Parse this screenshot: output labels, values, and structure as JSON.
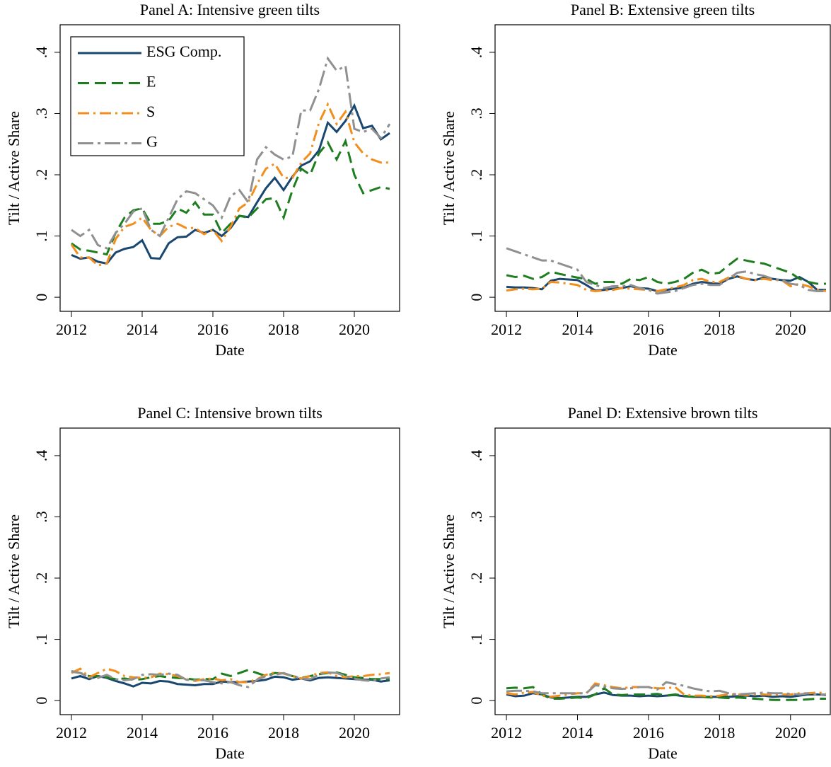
{
  "chart_data": [
    {
      "type": "line",
      "title": "Panel A: Intensive green tilts",
      "xlabel": "Date",
      "ylabel": "Tilt / Active Share",
      "legend": "upper left",
      "x": [
        2012,
        2012.25,
        2012.5,
        2012.75,
        2013,
        2013.25,
        2013.5,
        2013.75,
        2014,
        2014.25,
        2014.5,
        2014.75,
        2015,
        2015.25,
        2015.5,
        2015.75,
        2016,
        2016.25,
        2016.5,
        2016.75,
        2017,
        2017.25,
        2017.5,
        2017.75,
        2018,
        2018.25,
        2018.5,
        2018.75,
        2019,
        2019.25,
        2019.5,
        2019.75,
        2020,
        2020.25,
        2020.5,
        2020.75,
        2021
      ],
      "series": [
        {
          "name": "ESG Comp.",
          "color": "#1a476f",
          "values": [
            0.069,
            0.063,
            0.065,
            0.058,
            0.055,
            0.073,
            0.079,
            0.082,
            0.093,
            0.064,
            0.063,
            0.088,
            0.098,
            0.099,
            0.11,
            0.105,
            0.11,
            0.1,
            0.113,
            0.133,
            0.131,
            0.155,
            0.178,
            0.195,
            0.175,
            0.197,
            0.215,
            0.222,
            0.24,
            0.285,
            0.27,
            0.288,
            0.313,
            0.276,
            0.28,
            0.258,
            0.268
          ]
        },
        {
          "name": "E",
          "color": "#1e7d1e",
          "values": [
            0.088,
            0.078,
            0.076,
            0.073,
            0.07,
            0.105,
            0.13,
            0.142,
            0.145,
            0.12,
            0.12,
            0.125,
            0.145,
            0.138,
            0.155,
            0.135,
            0.135,
            0.105,
            0.12,
            0.133,
            0.13,
            0.145,
            0.16,
            0.162,
            0.13,
            0.175,
            0.21,
            0.2,
            0.235,
            0.253,
            0.225,
            0.255,
            0.2,
            0.17,
            0.175,
            0.18,
            0.177
          ]
        },
        {
          "name": "S",
          "color": "#f28e1c",
          "values": [
            0.086,
            0.065,
            0.065,
            0.052,
            0.055,
            0.095,
            0.115,
            0.12,
            0.13,
            0.11,
            0.1,
            0.115,
            0.12,
            0.113,
            0.113,
            0.103,
            0.11,
            0.092,
            0.115,
            0.145,
            0.155,
            0.185,
            0.21,
            0.218,
            0.195,
            0.195,
            0.22,
            0.235,
            0.285,
            0.315,
            0.283,
            0.303,
            0.253,
            0.235,
            0.225,
            0.22,
            0.22
          ]
        },
        {
          "name": "G",
          "color": "#909090",
          "values": [
            0.11,
            0.1,
            0.11,
            0.085,
            0.08,
            0.105,
            0.12,
            0.14,
            0.145,
            0.11,
            0.1,
            0.13,
            0.16,
            0.173,
            0.17,
            0.16,
            0.15,
            0.13,
            0.165,
            0.175,
            0.155,
            0.225,
            0.245,
            0.233,
            0.225,
            0.23,
            0.305,
            0.305,
            0.34,
            0.39,
            0.37,
            0.378,
            0.275,
            0.27,
            0.275,
            0.26,
            0.283
          ]
        }
      ],
      "xlim": [
        2011.68,
        2021.28
      ],
      "xticks": [
        2012,
        2014,
        2016,
        2018,
        2020
      ],
      "ylim": [
        -0.023,
        0.445
      ],
      "yticks": [
        0,
        {
          "value": 0.1,
          "label": ".1"
        },
        {
          "value": 0.2,
          "label": ".2"
        },
        {
          "value": 0.3,
          "label": ".3"
        },
        {
          "value": 0.4,
          "label": ".4"
        }
      ]
    },
    {
      "type": "line",
      "title": "Panel B: Extensive green tilts",
      "xlabel": "Date",
      "ylabel": "Tilt / Active Share",
      "x": [
        2012,
        2012.25,
        2012.5,
        2012.75,
        2013,
        2013.25,
        2013.5,
        2013.75,
        2014,
        2014.25,
        2014.5,
        2014.75,
        2015,
        2015.25,
        2015.5,
        2015.75,
        2016,
        2016.25,
        2016.5,
        2016.75,
        2017,
        2017.25,
        2017.5,
        2017.75,
        2018,
        2018.25,
        2018.5,
        2018.75,
        2019,
        2019.25,
        2019.5,
        2019.75,
        2020,
        2020.25,
        2020.5,
        2020.75,
        2021
      ],
      "series": [
        {
          "color": "#1a476f",
          "values": [
            0.017,
            0.016,
            0.016,
            0.015,
            0.013,
            0.027,
            0.03,
            0.029,
            0.028,
            0.02,
            0.011,
            0.012,
            0.014,
            0.015,
            0.018,
            0.015,
            0.014,
            0.01,
            0.012,
            0.014,
            0.016,
            0.022,
            0.025,
            0.023,
            0.022,
            0.03,
            0.034,
            0.03,
            0.028,
            0.032,
            0.03,
            0.028,
            0.027,
            0.033,
            0.025,
            0.012,
            0.012
          ]
        },
        {
          "color": "#1e7d1e",
          "values": [
            0.036,
            0.033,
            0.035,
            0.03,
            0.033,
            0.042,
            0.038,
            0.035,
            0.032,
            0.03,
            0.022,
            0.025,
            0.025,
            0.022,
            0.03,
            0.028,
            0.033,
            0.025,
            0.022,
            0.025,
            0.03,
            0.04,
            0.045,
            0.038,
            0.04,
            0.052,
            0.063,
            0.06,
            0.057,
            0.055,
            0.05,
            0.045,
            0.04,
            0.03,
            0.025,
            0.022,
            0.022
          ]
        },
        {
          "color": "#f28e1c",
          "values": [
            0.011,
            0.013,
            0.014,
            0.013,
            0.014,
            0.025,
            0.024,
            0.022,
            0.02,
            0.012,
            0.01,
            0.011,
            0.012,
            0.015,
            0.014,
            0.013,
            0.012,
            0.01,
            0.013,
            0.016,
            0.02,
            0.028,
            0.03,
            0.025,
            0.025,
            0.032,
            0.035,
            0.03,
            0.028,
            0.03,
            0.028,
            0.028,
            0.018,
            0.022,
            0.018,
            0.012,
            0.01
          ]
        },
        {
          "color": "#909090",
          "values": [
            0.08,
            0.075,
            0.07,
            0.065,
            0.06,
            0.06,
            0.055,
            0.05,
            0.045,
            0.025,
            0.02,
            0.015,
            0.018,
            0.018,
            0.02,
            0.015,
            0.012,
            0.006,
            0.008,
            0.01,
            0.015,
            0.02,
            0.022,
            0.02,
            0.02,
            0.03,
            0.04,
            0.042,
            0.038,
            0.035,
            0.03,
            0.028,
            0.022,
            0.02,
            0.012,
            0.01,
            0.01
          ]
        }
      ],
      "xlim": [
        2011.68,
        2021.12
      ],
      "xticks": [
        2012,
        2014,
        2016,
        2018,
        2020
      ],
      "ylim": [
        -0.023,
        0.445
      ],
      "yticks": [
        0,
        {
          "value": 0.1,
          "label": ".1"
        },
        {
          "value": 0.2,
          "label": ".2"
        },
        {
          "value": 0.3,
          "label": ".3"
        },
        {
          "value": 0.4,
          "label": ".4"
        }
      ]
    },
    {
      "type": "line",
      "title": "Panel C: Intensive brown tilts",
      "xlabel": "Date",
      "ylabel": "Tilt / Active Share",
      "x": [
        2012,
        2012.25,
        2012.5,
        2012.75,
        2013,
        2013.25,
        2013.5,
        2013.75,
        2014,
        2014.25,
        2014.5,
        2014.75,
        2015,
        2015.25,
        2015.5,
        2015.75,
        2016,
        2016.25,
        2016.5,
        2016.75,
        2017,
        2017.25,
        2017.5,
        2017.75,
        2018,
        2018.25,
        2018.5,
        2018.75,
        2019,
        2019.25,
        2019.5,
        2019.75,
        2020,
        2020.25,
        2020.5,
        2020.75,
        2021
      ],
      "series": [
        {
          "color": "#1a476f",
          "values": [
            0.036,
            0.04,
            0.035,
            0.04,
            0.037,
            0.032,
            0.028,
            0.023,
            0.029,
            0.028,
            0.032,
            0.031,
            0.027,
            0.026,
            0.025,
            0.027,
            0.027,
            0.031,
            0.03,
            0.03,
            0.031,
            0.032,
            0.034,
            0.039,
            0.038,
            0.034,
            0.036,
            0.033,
            0.037,
            0.038,
            0.037,
            0.036,
            0.035,
            0.034,
            0.034,
            0.031,
            0.033
          ]
        },
        {
          "color": "#1e7d1e",
          "values": [
            0.048,
            0.045,
            0.04,
            0.04,
            0.038,
            0.035,
            0.036,
            0.034,
            0.035,
            0.038,
            0.04,
            0.038,
            0.037,
            0.036,
            0.034,
            0.035,
            0.035,
            0.044,
            0.04,
            0.045,
            0.05,
            0.045,
            0.04,
            0.045,
            0.044,
            0.04,
            0.037,
            0.04,
            0.043,
            0.045,
            0.046,
            0.042,
            0.038,
            0.037,
            0.035,
            0.035,
            0.035
          ]
        },
        {
          "color": "#f28e1c",
          "values": [
            0.045,
            0.052,
            0.038,
            0.045,
            0.052,
            0.048,
            0.04,
            0.038,
            0.037,
            0.038,
            0.044,
            0.043,
            0.04,
            0.035,
            0.032,
            0.035,
            0.036,
            0.033,
            0.035,
            0.03,
            0.03,
            0.035,
            0.042,
            0.046,
            0.044,
            0.04,
            0.036,
            0.04,
            0.045,
            0.046,
            0.04,
            0.038,
            0.04,
            0.04,
            0.042,
            0.043,
            0.045
          ]
        },
        {
          "color": "#909090",
          "values": [
            0.047,
            0.045,
            0.038,
            0.037,
            0.042,
            0.035,
            0.033,
            0.035,
            0.042,
            0.043,
            0.042,
            0.044,
            0.042,
            0.034,
            0.033,
            0.033,
            0.03,
            0.028,
            0.03,
            0.025,
            0.022,
            0.034,
            0.04,
            0.042,
            0.045,
            0.04,
            0.036,
            0.035,
            0.042,
            0.046,
            0.045,
            0.04,
            0.036,
            0.033,
            0.032,
            0.036,
            0.038
          ]
        }
      ],
      "xlim": [
        2011.68,
        2021.28
      ],
      "xticks": [
        2012,
        2014,
        2016,
        2018,
        2020
      ],
      "ylim": [
        -0.023,
        0.445
      ],
      "yticks": [
        0,
        {
          "value": 0.1,
          "label": ".1"
        },
        {
          "value": 0.2,
          "label": ".2"
        },
        {
          "value": 0.3,
          "label": ".3"
        },
        {
          "value": 0.4,
          "label": ".4"
        }
      ]
    },
    {
      "type": "line",
      "title": "Panel D: Extensive brown tilts",
      "xlabel": "Date",
      "ylabel": "Tilt / Active Share",
      "x": [
        2012,
        2012.25,
        2012.5,
        2012.75,
        2013,
        2013.25,
        2013.5,
        2013.75,
        2014,
        2014.25,
        2014.5,
        2014.75,
        2015,
        2015.25,
        2015.5,
        2015.75,
        2016,
        2016.25,
        2016.5,
        2016.75,
        2017,
        2017.25,
        2017.5,
        2017.75,
        2018,
        2018.25,
        2018.5,
        2018.75,
        2019,
        2019.25,
        2019.5,
        2019.75,
        2020,
        2020.25,
        2020.5,
        2020.75,
        2021
      ],
      "series": [
        {
          "color": "#1a476f",
          "values": [
            0.01,
            0.007,
            0.008,
            0.012,
            0.01,
            0.005,
            0.004,
            0.005,
            0.006,
            0.006,
            0.01,
            0.013,
            0.009,
            0.008,
            0.008,
            0.007,
            0.008,
            0.007,
            0.008,
            0.009,
            0.007,
            0.006,
            0.006,
            0.006,
            0.006,
            0.006,
            0.007,
            0.008,
            0.007,
            0.008,
            0.006,
            0.007,
            0.006,
            0.008,
            0.01,
            0.01,
            0.009
          ]
        },
        {
          "color": "#1e7d1e",
          "values": [
            0.02,
            0.021,
            0.02,
            0.022,
            0.01,
            0.003,
            0.003,
            0.004,
            0.005,
            0.004,
            0.01,
            0.02,
            0.01,
            0.009,
            0.01,
            0.01,
            0.01,
            0.011,
            0.008,
            0.01,
            0.008,
            0.006,
            0.006,
            0.005,
            0.005,
            0.004,
            0.005,
            0.004,
            0.003,
            0.002,
            0.001,
            0.001,
            0.001,
            0.001,
            0.002,
            0.003,
            0.003
          ]
        },
        {
          "color": "#f28e1c",
          "values": [
            0.012,
            0.01,
            0.013,
            0.014,
            0.008,
            0.006,
            0.008,
            0.01,
            0.012,
            0.012,
            0.028,
            0.025,
            0.022,
            0.02,
            0.022,
            0.022,
            0.022,
            0.02,
            0.02,
            0.022,
            0.01,
            0.008,
            0.008,
            0.007,
            0.008,
            0.01,
            0.01,
            0.009,
            0.01,
            0.01,
            0.009,
            0.01,
            0.01,
            0.012,
            0.012,
            0.013,
            0.012
          ]
        },
        {
          "color": "#909090",
          "values": [
            0.015,
            0.016,
            0.016,
            0.015,
            0.012,
            0.012,
            0.012,
            0.012,
            0.012,
            0.012,
            0.025,
            0.023,
            0.02,
            0.019,
            0.02,
            0.022,
            0.022,
            0.018,
            0.03,
            0.027,
            0.024,
            0.02,
            0.017,
            0.015,
            0.016,
            0.012,
            0.01,
            0.011,
            0.012,
            0.013,
            0.012,
            0.012,
            0.011,
            0.01,
            0.012,
            0.01,
            0.01
          ]
        }
      ],
      "xlim": [
        2011.68,
        2021.12
      ],
      "xticks": [
        2012,
        2014,
        2016,
        2018,
        2020
      ],
      "ylim": [
        -0.023,
        0.445
      ],
      "yticks": [
        0,
        {
          "value": 0.1,
          "label": ".1"
        },
        {
          "value": 0.2,
          "label": ".2"
        },
        {
          "value": 0.3,
          "label": ".3"
        },
        {
          "value": 0.4,
          "label": ".4"
        }
      ]
    }
  ]
}
